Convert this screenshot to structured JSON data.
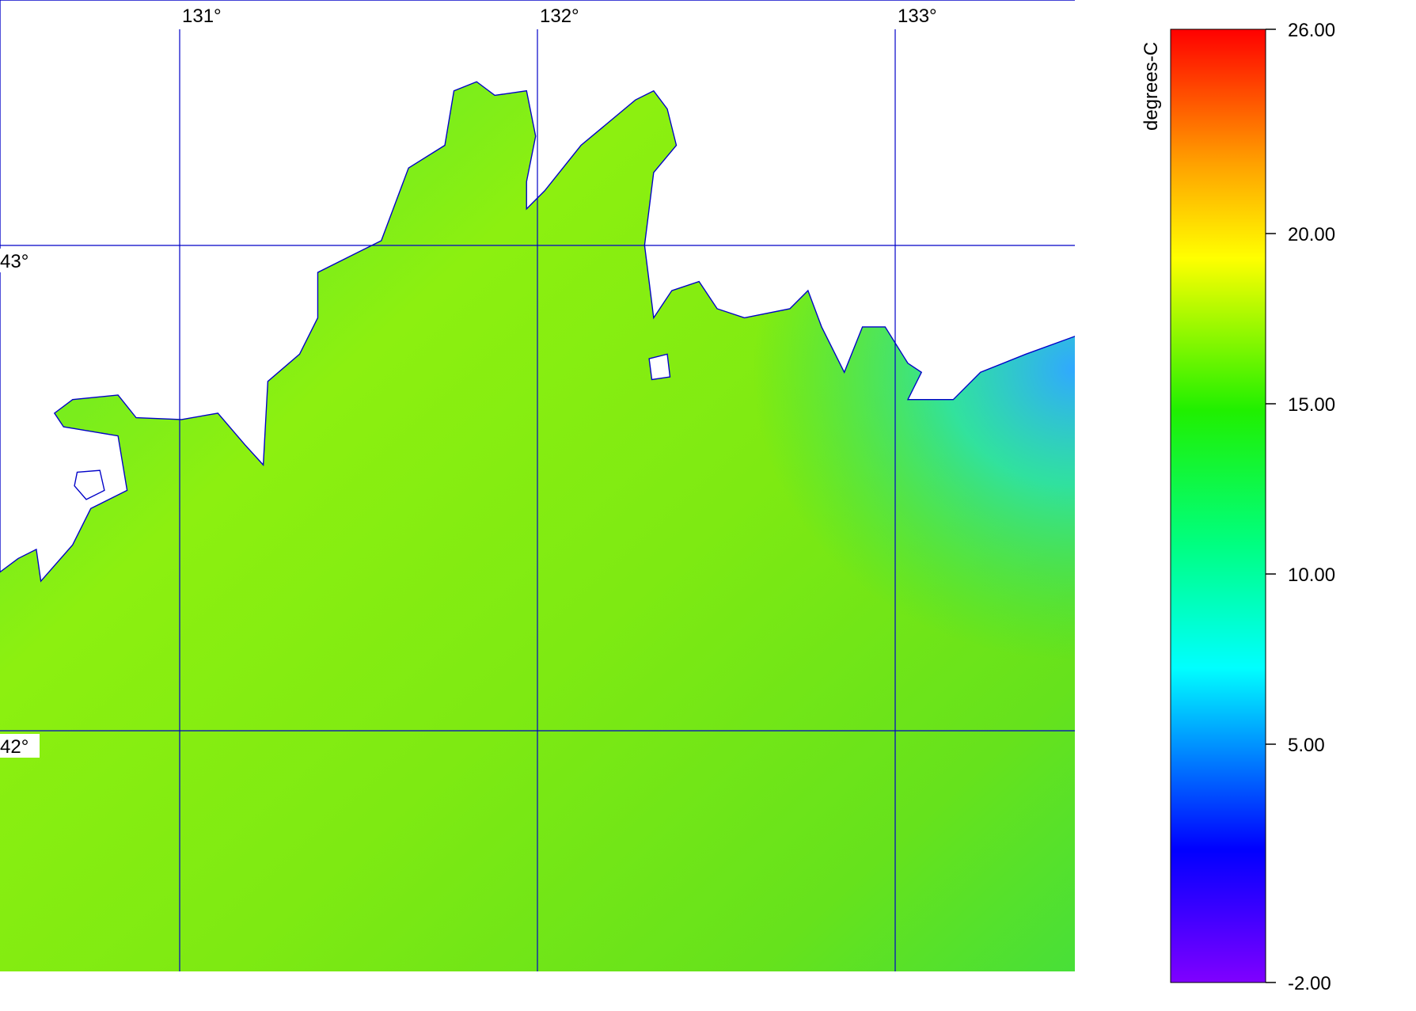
{
  "map": {
    "lon_ticks": [
      {
        "value": 131,
        "label": "131°"
      },
      {
        "value": 132,
        "label": "132°"
      },
      {
        "value": 133,
        "label": "133°"
      }
    ],
    "lat_ticks": [
      {
        "value": 43,
        "label": "43°"
      },
      {
        "value": 42,
        "label": "42°"
      }
    ]
  },
  "colorbar": {
    "label": "degrees-C",
    "range": [
      -2,
      26
    ],
    "ticks": [
      {
        "value": 26,
        "label": "26.00"
      },
      {
        "value": 20,
        "label": "20.00"
      },
      {
        "value": 15,
        "label": "15.00"
      },
      {
        "value": 10,
        "label": "10.00"
      },
      {
        "value": 5,
        "label": "5.00"
      },
      {
        "value": -2,
        "label": "-2.00"
      }
    ]
  }
}
